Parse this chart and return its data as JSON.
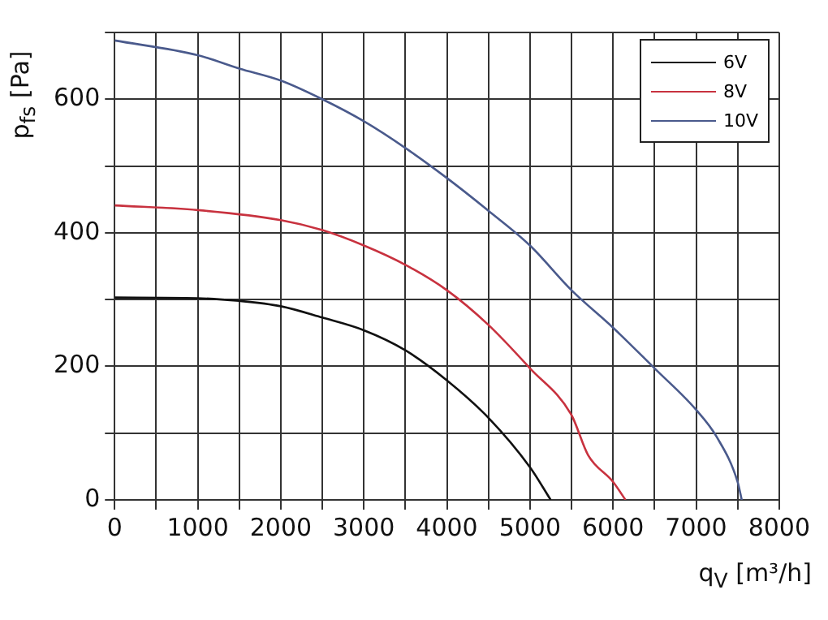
{
  "chart_data": {
    "type": "line",
    "xlabel": "q$_{V}$ [m³/h]",
    "ylabel": "p$_{fs}$ [Pa]",
    "xlim": [
      0,
      8000
    ],
    "ylim": [
      0,
      700
    ],
    "xticks": [
      0,
      {
        "value": 500,
        "label": null
      },
      1000,
      {
        "value": 1500,
        "label": null
      },
      2000,
      {
        "value": 2500,
        "label": null
      },
      3000,
      {
        "value": 3500,
        "label": null
      },
      4000,
      {
        "value": 4500,
        "label": null
      },
      5000,
      {
        "value": 5500,
        "label": null
      },
      6000,
      {
        "value": 6500,
        "label": null
      },
      7000,
      {
        "value": 7500,
        "label": null
      },
      8000
    ],
    "yticks": [
      0,
      {
        "value": 100,
        "label": null
      },
      200,
      {
        "value": 300,
        "label": null
      },
      400,
      {
        "value": 500,
        "label": null
      },
      600,
      {
        "value": 700,
        "label": null
      }
    ],
    "grid": true,
    "legend": "top right",
    "marker": "none",
    "line_style": "solid",
    "series": [
      {
        "name": "6V",
        "color": "#111111",
        "x": [
          0,
          1000,
          1500,
          2000,
          2500,
          3000,
          3500,
          4000,
          4500,
          5000,
          5250
        ],
        "values": [
          303,
          302,
          298,
          290,
          273,
          254,
          224,
          179,
          123,
          49,
          0
        ]
      },
      {
        "name": "8V",
        "color": "#c8323f",
        "x": [
          0,
          1000,
          2000,
          2500,
          3000,
          3500,
          4000,
          4500,
          5000,
          5500,
          5700,
          6000,
          6150
        ],
        "values": [
          441,
          434,
          419,
          404,
          381,
          352,
          314,
          262,
          197,
          127,
          67,
          27,
          0
        ]
      },
      {
        "name": "10V",
        "color": "#4a5a8c",
        "x": [
          0,
          1000,
          1500,
          2000,
          2500,
          3000,
          3500,
          4000,
          4500,
          5000,
          5500,
          6000,
          6500,
          7000,
          7250,
          7500,
          7550
        ],
        "values": [
          688,
          666,
          646,
          628,
          600,
          567,
          527,
          482,
          433,
          381,
          314,
          258,
          197,
          135,
          94,
          27,
          0
        ]
      }
    ]
  }
}
